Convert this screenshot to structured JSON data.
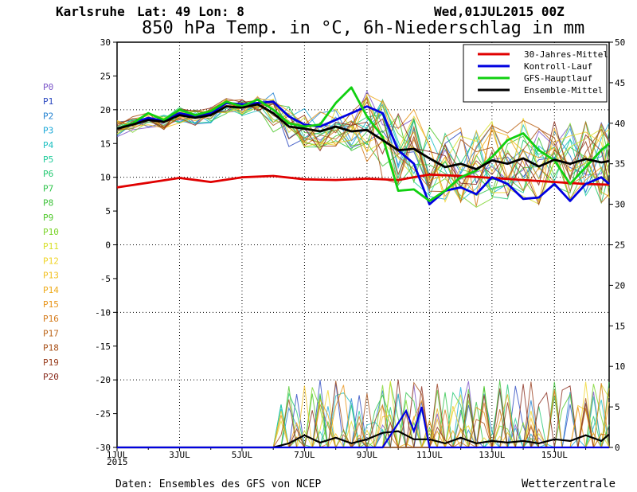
{
  "header": {
    "location": "Karlsruhe",
    "latlon": "Lat: 49 Lon: 8",
    "run": "Wed,01JUL2015 00Z",
    "title": "850 hPa Temp. in °C, 6h-Niederschlag in mm"
  },
  "footer": {
    "source": "Daten: Ensembles des GFS von NCEP",
    "brand": "Wetterzentrale"
  },
  "members": [
    "P0",
    "P1",
    "P2",
    "P3",
    "P4",
    "P5",
    "P6",
    "P7",
    "P8",
    "P9",
    "P10",
    "P11",
    "P12",
    "P13",
    "P14",
    "P15",
    "P16",
    "P17",
    "P18",
    "P19",
    "P20"
  ],
  "member_colors": [
    "#7a54c8",
    "#2a48c0",
    "#1f7fd0",
    "#1aa8d8",
    "#1bbfc0",
    "#1fcc9a",
    "#22c870",
    "#2ec44a",
    "#3ec23a",
    "#4ec82a",
    "#7bd42a",
    "#d8e02a",
    "#f0d428",
    "#f2c020",
    "#eeaa18",
    "#e89418",
    "#d47a1a",
    "#bc6418",
    "#a85018",
    "#983c1c",
    "#882a1c"
  ],
  "chart_data": {
    "type": "line",
    "x_tick_labels": [
      "1JUL",
      "3JUL",
      "5JUL",
      "7JUL",
      "9JUL",
      "11JUL",
      "13JUL",
      "15JUL"
    ],
    "x_year_label": "2015",
    "x_range_days": [
      0,
      15.75
    ],
    "y_left_ticks": [
      30,
      25,
      20,
      15,
      10,
      5,
      0,
      -5,
      -10,
      -15,
      -20,
      -25,
      -30
    ],
    "y_left_range": [
      -30,
      30
    ],
    "y_right_ticks": [
      50,
      45,
      40,
      35,
      30,
      25,
      20,
      15,
      10,
      5,
      0
    ],
    "y_right_range": [
      0,
      50
    ],
    "grid": true,
    "legend_position": "top-right",
    "series": [
      {
        "name": "30-Jahres-Mittel",
        "color": "#e00000",
        "x": [
          0,
          1,
          2,
          3,
          4,
          5,
          6,
          7,
          8,
          9,
          10,
          11,
          12,
          13,
          14,
          15,
          15.75
        ],
        "values": [
          8.5,
          9.2,
          9.9,
          9.3,
          10.0,
          10.2,
          9.7,
          9.6,
          9.8,
          9.6,
          10.4,
          10.2,
          9.9,
          9.6,
          9.3,
          9.0,
          8.9
        ]
      },
      {
        "name": "Kontroll-Lauf",
        "color": "#0000e0",
        "x": [
          0,
          0.5,
          1,
          1.5,
          2,
          2.5,
          3,
          3.5,
          4,
          4.5,
          5,
          5.5,
          6,
          6.5,
          7,
          7.5,
          8,
          8.5,
          9,
          9.5,
          10,
          10.5,
          11,
          11.5,
          12,
          12.5,
          13,
          13.5,
          14,
          14.5,
          15,
          15.5,
          15.75
        ],
        "values": [
          17.2,
          18,
          18.8,
          18.3,
          19.5,
          19,
          19.5,
          21,
          20.8,
          21,
          21.2,
          19,
          17.8,
          17.5,
          18.5,
          19.5,
          20.5,
          19.5,
          14,
          12,
          6,
          8,
          8.5,
          7.5,
          10,
          9,
          6.8,
          7,
          9,
          6.5,
          9,
          10,
          9
        ]
      },
      {
        "name": "GFS-Hauptlauf",
        "color": "#10d010",
        "x": [
          0,
          0.5,
          1,
          1.5,
          2,
          2.5,
          3,
          3.5,
          4,
          4.5,
          5,
          5.5,
          6,
          6.5,
          7,
          7.5,
          8,
          8.5,
          9,
          9.5,
          10,
          10.5,
          11,
          11.5,
          12,
          12.5,
          13,
          13.5,
          14,
          14.5,
          15,
          15.5,
          15.75
        ],
        "values": [
          17.2,
          18,
          19.5,
          18.5,
          20,
          19.2,
          19.8,
          21.2,
          20.5,
          21.5,
          20,
          18,
          17.5,
          17.8,
          21,
          23.3,
          19,
          16,
          8,
          8.2,
          6.5,
          8,
          10,
          11,
          13,
          15.5,
          16.5,
          14,
          12.5,
          9,
          11.5,
          14,
          15
        ]
      },
      {
        "name": "Ensemble-Mittel",
        "color": "#000000",
        "x": [
          0,
          0.5,
          1,
          1.5,
          2,
          2.5,
          3,
          3.5,
          4,
          4.5,
          5,
          5.5,
          6,
          6.5,
          7,
          7.5,
          8,
          8.5,
          9,
          9.5,
          10,
          10.5,
          11,
          11.5,
          12,
          12.5,
          13,
          13.5,
          14,
          14.5,
          15,
          15.5,
          15.75
        ],
        "values": [
          17.2,
          17.8,
          18.5,
          18.2,
          19.2,
          18.8,
          19.2,
          20.5,
          20.3,
          20.8,
          19.5,
          17.5,
          17.2,
          16.8,
          17.5,
          16.8,
          17,
          15.5,
          14,
          14.2,
          12.8,
          11.5,
          12,
          11.2,
          12.5,
          12,
          12.8,
          11.6,
          12.6,
          12,
          12.7,
          12.2,
          12.4
        ]
      }
    ],
    "precip_series": [
      {
        "name": "Ensemble-Mittel",
        "color": "#000000",
        "x": [
          0,
          4.5,
          5,
          5.5,
          6,
          6.5,
          7,
          7.5,
          8,
          8.5,
          9,
          9.5,
          10,
          10.5,
          11,
          11.5,
          12,
          12.5,
          13,
          13.5,
          14,
          14.5,
          15,
          15.5,
          15.75
        ],
        "values": [
          0,
          0,
          0,
          0.5,
          1.5,
          0.6,
          1.2,
          0.5,
          1,
          1.8,
          2,
          1,
          1,
          0.5,
          1.2,
          0.5,
          0.8,
          0.6,
          0.8,
          0.5,
          1,
          0.8,
          1.5,
          0.8,
          1.6
        ]
      },
      {
        "name": "Kontroll-Lauf",
        "color": "#0000e0",
        "x": [
          0,
          8,
          8.5,
          9,
          9.25,
          9.5,
          9.75,
          10,
          15.75
        ],
        "values": [
          0,
          0,
          0,
          3,
          4.5,
          2,
          5,
          0,
          0
        ]
      }
    ]
  }
}
